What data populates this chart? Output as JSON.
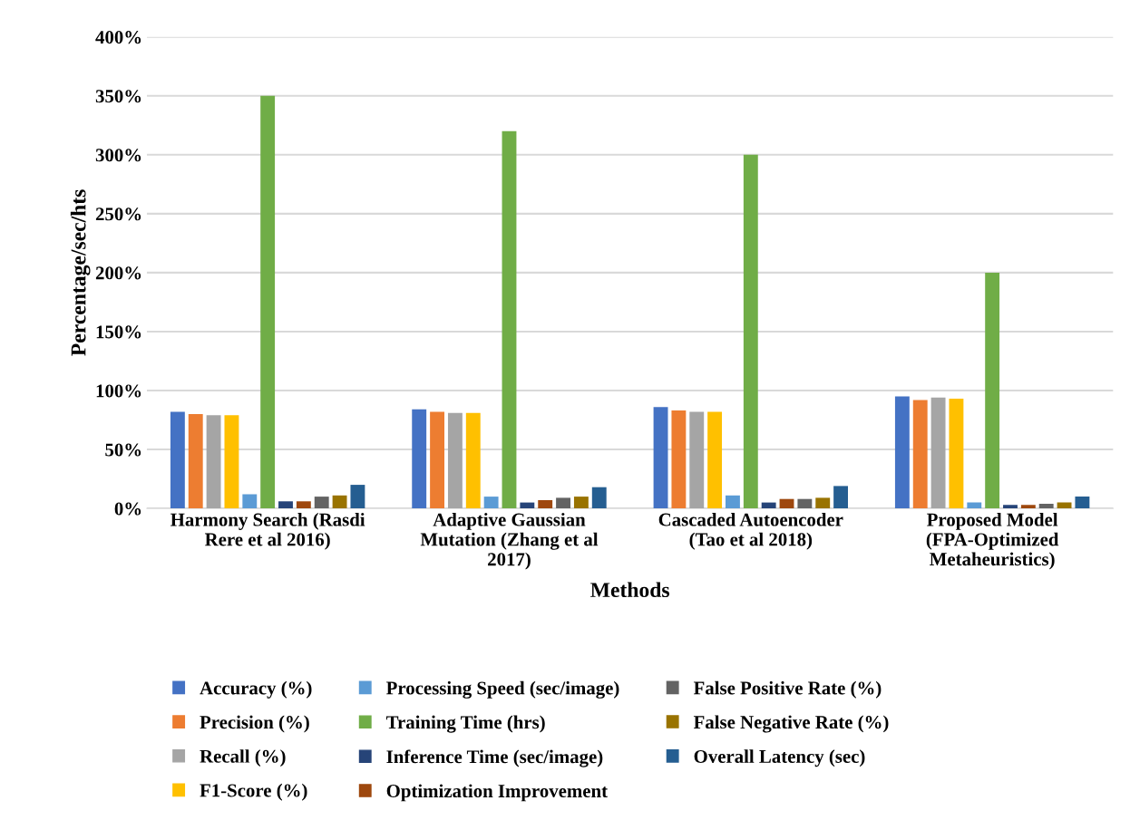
{
  "chart_data": {
    "type": "bar",
    "xlabel": "Methods",
    "ylabel": "Percentage/sec/hts",
    "categories": [
      "Harmony Search (Rasdi Rere et al 2016)",
      "Adaptive Gaussian Mutation (Zhang et al 2017)",
      "Cascaded Autoencoder (Tao et al 2018)",
      "Proposed Model (FPA-Optimized Metaheuristics)"
    ],
    "series": [
      {
        "name": "Accuracy (%)",
        "color": "#4472c4",
        "values": [
          82,
          84,
          86,
          95
        ]
      },
      {
        "name": "Precision (%)",
        "color": "#ed7d31",
        "values": [
          80,
          82,
          83,
          92
        ]
      },
      {
        "name": "Recall (%)",
        "color": "#a5a5a5",
        "values": [
          79,
          81,
          82,
          94
        ]
      },
      {
        "name": "F1-Score (%)",
        "color": "#ffc000",
        "values": [
          79,
          81,
          82,
          93
        ]
      },
      {
        "name": "Processing Speed (sec/image)",
        "color": "#5b9bd5",
        "values": [
          12,
          10,
          11,
          5
        ]
      },
      {
        "name": "Training Time (hrs)",
        "color": "#70ad47",
        "values": [
          350,
          320,
          300,
          200
        ]
      },
      {
        "name": "Inference Time (sec/image)",
        "color": "#264478",
        "values": [
          6,
          5,
          5,
          3
        ]
      },
      {
        "name": "Optimization Improvement",
        "color": "#9e480e",
        "values": [
          6,
          7,
          8,
          3
        ]
      },
      {
        "name": "False Positive Rate (%)",
        "color": "#636363",
        "values": [
          10,
          9,
          8,
          4
        ]
      },
      {
        "name": "False Negative Rate (%)",
        "color": "#997300",
        "values": [
          11,
          10,
          9,
          5
        ]
      },
      {
        "name": "Overall Latency (sec)",
        "color": "#255e91",
        "values": [
          20,
          18,
          19,
          10
        ]
      }
    ],
    "ylim": [
      0,
      400
    ],
    "yticks": [
      {
        "value": 0,
        "label": "0%"
      },
      {
        "value": 50,
        "label": "50%"
      },
      {
        "value": 100,
        "label": "100%"
      },
      {
        "value": 150,
        "label": "150%"
      },
      {
        "value": 200,
        "label": "200%"
      },
      {
        "value": 250,
        "label": "250%"
      },
      {
        "value": 300,
        "label": "300%"
      },
      {
        "value": 350,
        "label": "350%"
      },
      {
        "value": 400,
        "label": "400%"
      }
    ],
    "grid": "y",
    "legend": "bottom"
  }
}
